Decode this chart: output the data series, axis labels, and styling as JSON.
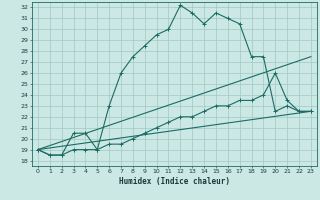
{
  "xlabel": "Humidex (Indice chaleur)",
  "xlim": [
    -0.5,
    23.5
  ],
  "ylim": [
    17.5,
    32.5
  ],
  "yticks": [
    18,
    19,
    20,
    21,
    22,
    23,
    24,
    25,
    26,
    27,
    28,
    29,
    30,
    31,
    32
  ],
  "xticks": [
    0,
    1,
    2,
    3,
    4,
    5,
    6,
    7,
    8,
    9,
    10,
    11,
    12,
    13,
    14,
    15,
    16,
    17,
    18,
    19,
    20,
    21,
    22,
    23
  ],
  "bg_color": "#cce8e4",
  "grid_color": "#a0c8c4",
  "line_color": "#1a6b64",
  "line1_x": [
    0,
    1,
    2,
    3,
    4,
    5,
    6,
    7,
    8,
    9,
    10,
    11,
    12,
    13,
    14,
    15,
    16,
    17,
    18,
    19,
    20,
    21,
    22,
    23
  ],
  "line1_y": [
    19.0,
    18.5,
    18.5,
    19.0,
    19.0,
    19.0,
    23.0,
    26.0,
    27.5,
    28.5,
    29.5,
    30.0,
    32.2,
    31.5,
    30.5,
    31.5,
    31.0,
    30.5,
    27.5,
    27.5,
    22.5,
    23.0,
    22.5,
    22.5
  ],
  "line2_x": [
    0,
    1,
    2,
    3,
    4,
    5,
    6,
    7,
    8,
    9,
    10,
    11,
    12,
    13,
    14,
    15,
    16,
    17,
    18,
    19,
    20,
    21,
    22,
    23
  ],
  "line2_y": [
    19.0,
    18.5,
    18.5,
    20.5,
    20.5,
    19.0,
    19.5,
    19.5,
    20.0,
    20.5,
    21.0,
    21.5,
    22.0,
    22.0,
    22.5,
    23.0,
    23.0,
    23.5,
    23.5,
    24.0,
    26.0,
    23.5,
    22.5,
    22.5
  ],
  "line3_x": [
    0,
    23
  ],
  "line3_y": [
    19.0,
    27.5
  ],
  "line4_x": [
    0,
    23
  ],
  "line4_y": [
    19.0,
    22.5
  ]
}
